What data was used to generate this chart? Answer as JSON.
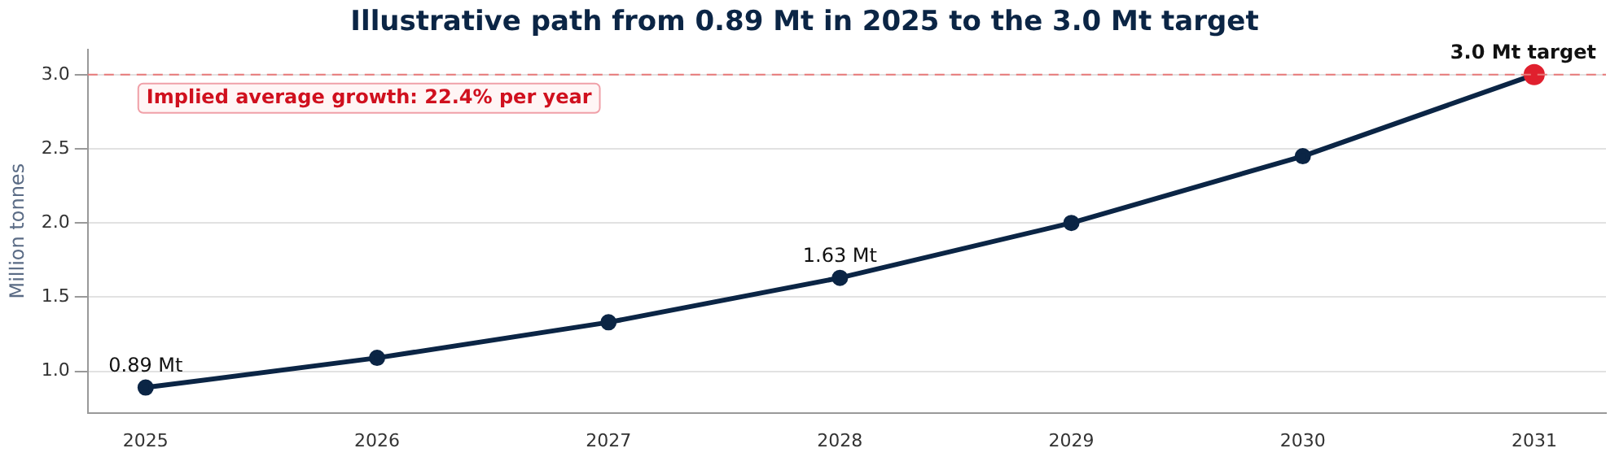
{
  "chart_data": {
    "type": "line",
    "title": "Illustrative path from 0.89 Mt in 2025 to the 3.0 Mt target",
    "ylabel": "Million tonnes",
    "x": [
      2025,
      2026,
      2027,
      2028,
      2029,
      2030,
      2031
    ],
    "series": [
      {
        "color": "#0b2545",
        "colors": [
          "#0b2545",
          "#0b2545",
          "#0b2545",
          "#0b2545",
          "#0b2545",
          "#0b2545",
          "#e0202e"
        ],
        "values": [
          0.89,
          1.09,
          1.33,
          1.63,
          2.0,
          2.45,
          3.0
        ]
      }
    ],
    "xlim": [
      2024.75,
      2031.31
    ],
    "xticks": [
      2025,
      2026,
      2027,
      2028,
      2029,
      2030,
      2031
    ],
    "ylim": [
      0.72,
      3.17
    ],
    "yticks": [
      {
        "value": 1,
        "label": "1.0"
      },
      {
        "value": 1.5,
        "label": "1.5"
      },
      {
        "value": 2,
        "label": "2.0"
      },
      {
        "value": 2.5,
        "label": "2.5"
      },
      {
        "value": 3,
        "label": "3.0"
      }
    ],
    "ref_lines": [
      {
        "axis": "y",
        "value": 3.0,
        "color": "#e87a7a",
        "line_style": "dashed"
      }
    ],
    "annotations": [
      {
        "text": "0.89 Mt",
        "x": 2025,
        "y": 0.89
      },
      {
        "text": "1.63 Mt",
        "x": 2028,
        "y": 1.63
      },
      {
        "text": "3.0 Mt target",
        "x": 2031,
        "y": 3.0
      },
      "Implied average growth: 22.4% per year"
    ],
    "grid": "y",
    "legend": false,
    "marker": "circle",
    "line_style": "solid"
  }
}
